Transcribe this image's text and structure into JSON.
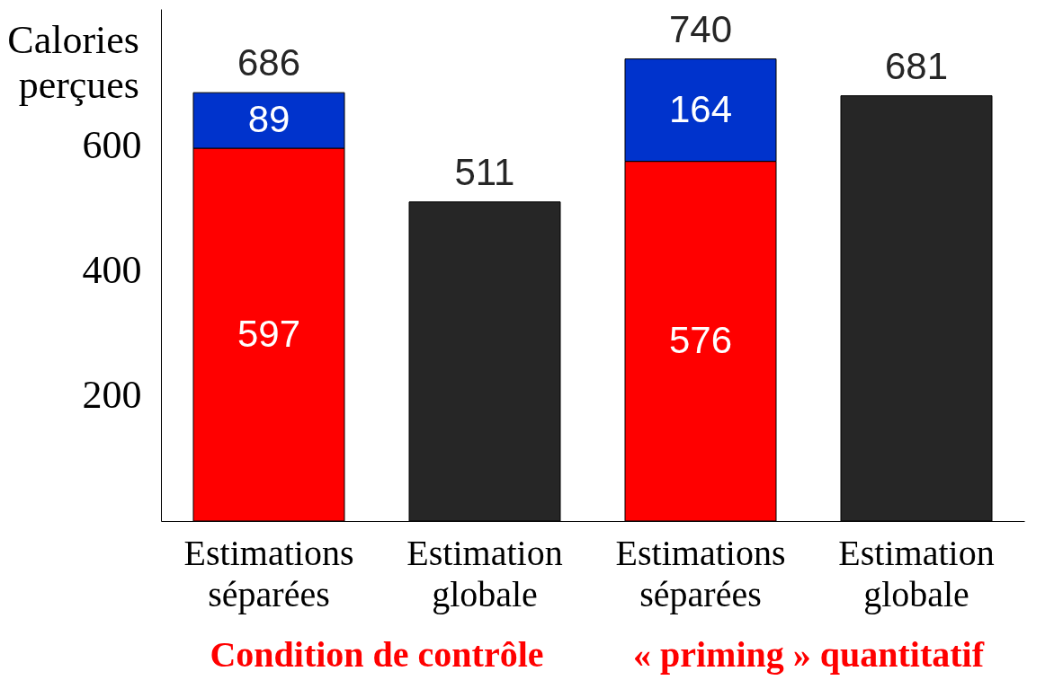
{
  "chart_data": {
    "type": "bar",
    "ylabel": "Calories perçues",
    "categories": [
      "Estimations séparées",
      "Estimation globale",
      "Estimations séparées",
      "Estimation globale"
    ],
    "series": [
      {
        "color": "#ff0000",
        "values": [
          597,
          null,
          576,
          null
        ]
      },
      {
        "color": "#0033cc",
        "values": [
          89,
          null,
          164,
          null
        ]
      },
      {
        "color": "#262626",
        "values": [
          null,
          511,
          null,
          681
        ]
      }
    ],
    "stacked": true,
    "data_labels": true,
    "totals": [
      "686",
      null,
      "740",
      null
    ],
    "ylim": [
      0,
      820
    ],
    "yticks": [
      200,
      400,
      600
    ],
    "annotations": [
      "Condition de contrôle",
      "« priming » quantitatif"
    ]
  }
}
